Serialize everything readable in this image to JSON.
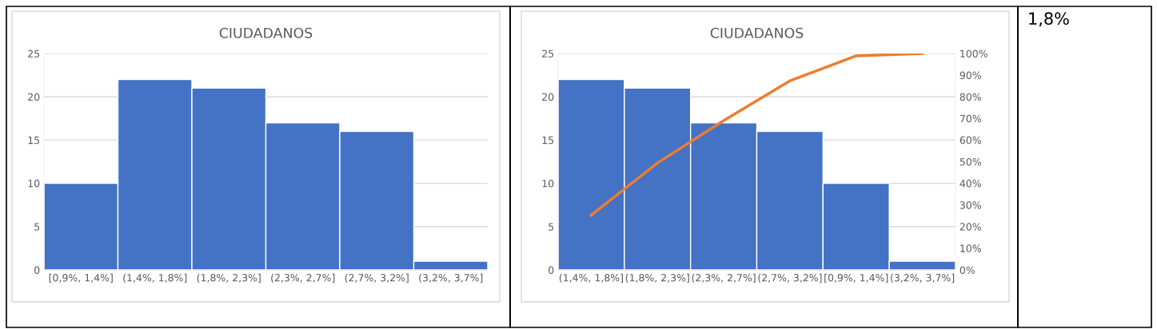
{
  "chart_data": [
    {
      "type": "bar",
      "title": "CIUDADANOS",
      "categories": [
        "[0,9%, 1,4%]",
        "(1,4%, 1,8%]",
        "(1,8%, 2,3%]",
        "(2,3%, 2,7%]",
        "(2,7%, 3,2%]",
        "(3,2%, 3,7%]"
      ],
      "series": [
        {
          "color": "#4472c4",
          "values": [
            10,
            22,
            21,
            17,
            16,
            1
          ]
        }
      ],
      "ylim": [
        0,
        25
      ],
      "yticks": [
        0,
        5,
        10,
        15,
        20,
        25
      ],
      "grid": "y"
    },
    {
      "type": "bar",
      "title": "CIUDADANOS",
      "categories": [
        "(1,4%, 1,8%]",
        "(1,8%, 2,3%]",
        "(2,3%, 2,7%]",
        "(2,7%, 3,2%]",
        "[0,9%, 1,4%]",
        "(3,2%, 3,7%]"
      ],
      "series": [
        {
          "color": "#4472c4",
          "values": [
            22,
            21,
            17,
            16,
            10,
            1
          ]
        },
        {
          "type": "line",
          "axis": "y2",
          "color": "#ed7d31",
          "values": [
            25.3,
            49.4,
            69.0,
            87.4,
            98.9,
            100
          ]
        }
      ],
      "ylim": [
        0,
        25
      ],
      "yticks": [
        0,
        5,
        10,
        15,
        20,
        25
      ],
      "y2lim": [
        0,
        100
      ],
      "y2ticks": [
        {
          "value": 0,
          "label": "0%"
        },
        {
          "value": 10,
          "label": "10%"
        },
        {
          "value": 20,
          "label": "20%"
        },
        {
          "value": 30,
          "label": "30%"
        },
        {
          "value": 40,
          "label": "40%"
        },
        {
          "value": 50,
          "label": "50%"
        },
        {
          "value": 60,
          "label": "60%"
        },
        {
          "value": 70,
          "label": "70%"
        },
        {
          "value": 80,
          "label": "80%"
        },
        {
          "value": 90,
          "label": "90%"
        },
        {
          "value": 100,
          "label": "100%"
        }
      ],
      "grid": "y",
      "marker": "none"
    },
    {
      "type": "other",
      "annotations": [
        "1,8%"
      ]
    }
  ]
}
